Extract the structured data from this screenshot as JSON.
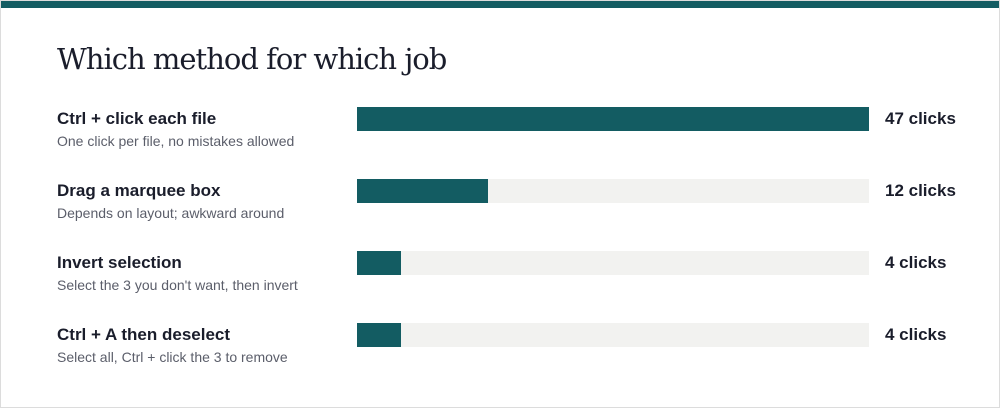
{
  "title": "Which method for which job",
  "colors": {
    "accent": "#135c62",
    "track": "#f2f2f0",
    "text": "#1a1d2b",
    "muted": "#5b5e6a"
  },
  "chart_data": {
    "type": "bar",
    "orientation": "horizontal",
    "title": "Which method for which job",
    "xlim": [
      0,
      47
    ],
    "grid": false,
    "categories": [
      "Ctrl + click each file",
      "Drag a marquee box",
      "Invert selection",
      "Ctrl + A then deselect"
    ],
    "subtitles": [
      "One click per file, no mistakes allowed",
      "Depends on layout; awkward around",
      "Select the 3 you don't want, then invert",
      "Select all, Ctrl + click the 3 to remove"
    ],
    "values": [
      47,
      12,
      4,
      4
    ],
    "value_labels": [
      "47 clicks",
      "12 clicks",
      "4 clicks",
      "4 clicks"
    ]
  }
}
